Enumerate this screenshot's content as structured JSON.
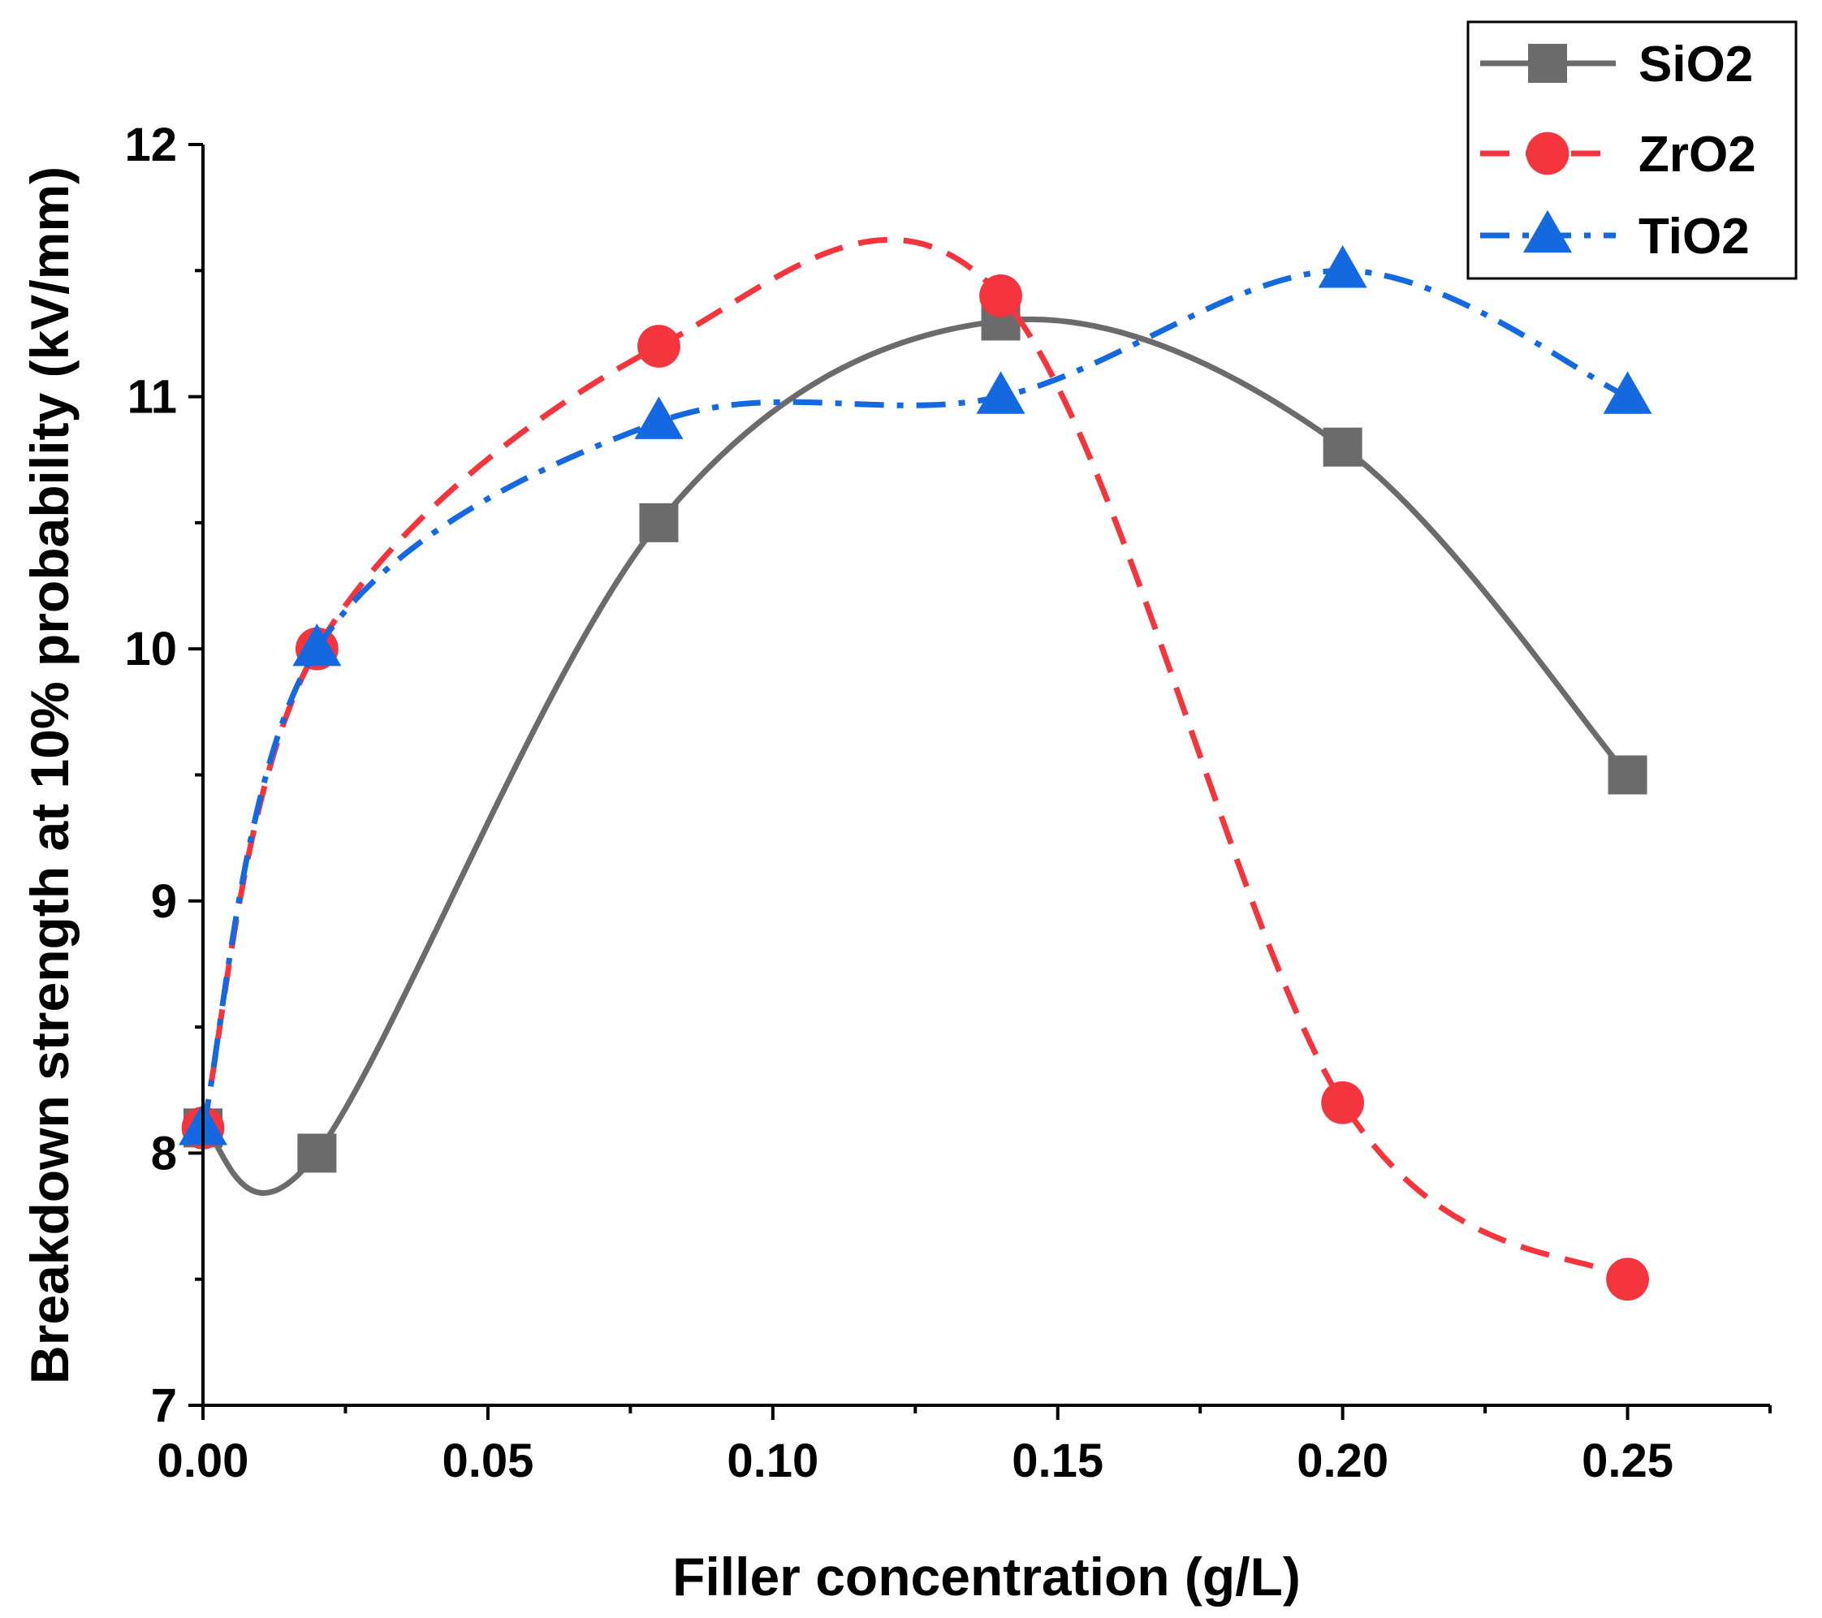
{
  "chart_data": {
    "type": "line",
    "title": "",
    "xlabel": "Filler concentration (g/L)",
    "ylabel": "Breakdown strength at 10% probability (kV/mm)",
    "xlim": [
      0,
      0.275
    ],
    "ylim": [
      7,
      12
    ],
    "xticks": [
      0.0,
      0.05,
      0.1,
      0.15,
      0.2,
      0.25
    ],
    "xtick_labels": [
      "0.00",
      "0.05",
      "0.10",
      "0.15",
      "0.20",
      "0.25"
    ],
    "yticks": [
      7,
      8,
      9,
      10,
      11,
      12
    ],
    "ytick_labels": [
      "7",
      "8",
      "9",
      "10",
      "11",
      "12"
    ],
    "legend_position": "top-right",
    "x": [
      0,
      0.02,
      0.08,
      0.14,
      0.2,
      0.25
    ],
    "series": [
      {
        "name": "SiO2",
        "values": [
          8.1,
          8.0,
          10.5,
          11.3,
          10.8,
          9.5
        ],
        "color": "#6b6b6b",
        "marker": "square",
        "line_style": "solid"
      },
      {
        "name": "ZrO2",
        "values": [
          8.1,
          10.0,
          11.2,
          11.4,
          8.2,
          7.5
        ],
        "color": "#f5353d",
        "marker": "circle",
        "line_style": "dash"
      },
      {
        "name": "TiO2",
        "values": [
          8.1,
          10.0,
          10.9,
          11.0,
          11.5,
          11.0
        ],
        "color": "#1468e0",
        "marker": "triangle",
        "line_style": "dashdot"
      }
    ]
  }
}
